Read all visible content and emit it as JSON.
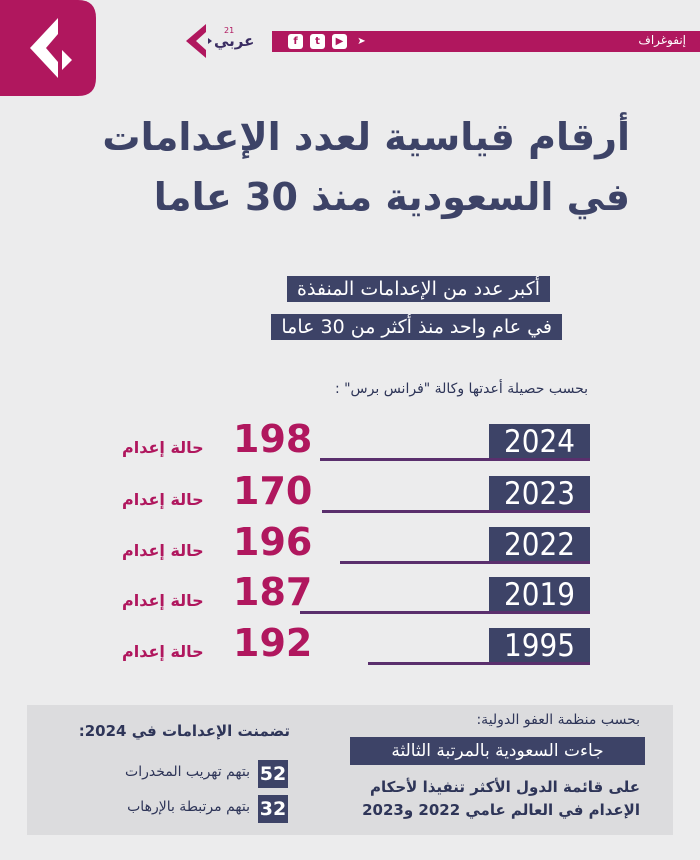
{
  "header": {
    "section_label": "إنفوغراف",
    "logo_text": "عربي",
    "logo_superscript": "21",
    "social_icons": [
      "facebook-icon",
      "twitter-icon",
      "youtube-icon",
      "telegram-icon"
    ],
    "accent_color": "#b0175e",
    "navy_color": "#3d4367"
  },
  "title": {
    "line1": "أرقام قياسية لعدد الإعدامات",
    "line2": "في السعودية منذ 30 عاما"
  },
  "subtitle": {
    "line1": "أكبر عدد من الإعدامات المنفذة",
    "line2": "في عام واحد منذ أكثر من 30 عاما"
  },
  "source_note": "بحسب حصيلة أعدتها وكالة \"فرانس برس\" :",
  "rows": [
    {
      "year": "2024",
      "count": "198",
      "label": "حالة إعدام"
    },
    {
      "year": "2023",
      "count": "170",
      "label": "حالة إعدام"
    },
    {
      "year": "2022",
      "count": "196",
      "label": "حالة إعدام"
    },
    {
      "year": "2019",
      "count": "187",
      "label": "حالة إعدام"
    },
    {
      "year": "1995",
      "count": "192",
      "label": "حالة إعدام"
    }
  ],
  "amnesty": {
    "source": "بحسب منظمة العفو الدولية:",
    "rank": "جاءت السعودية بالمرتبة الثالثة",
    "desc_line1": "على قائمة الدول الأكثر تنفيذا لأحكام",
    "desc_line2": "الإعدام في العالم عامي 2022 و2023"
  },
  "included": {
    "title": "تضمنت الإعدامات في 2024:",
    "items": [
      {
        "count": "52",
        "label": "بتهم تهريب المخدرات"
      },
      {
        "count": "32",
        "label": "بتهم مرتبطة بالإرهاب"
      }
    ]
  }
}
